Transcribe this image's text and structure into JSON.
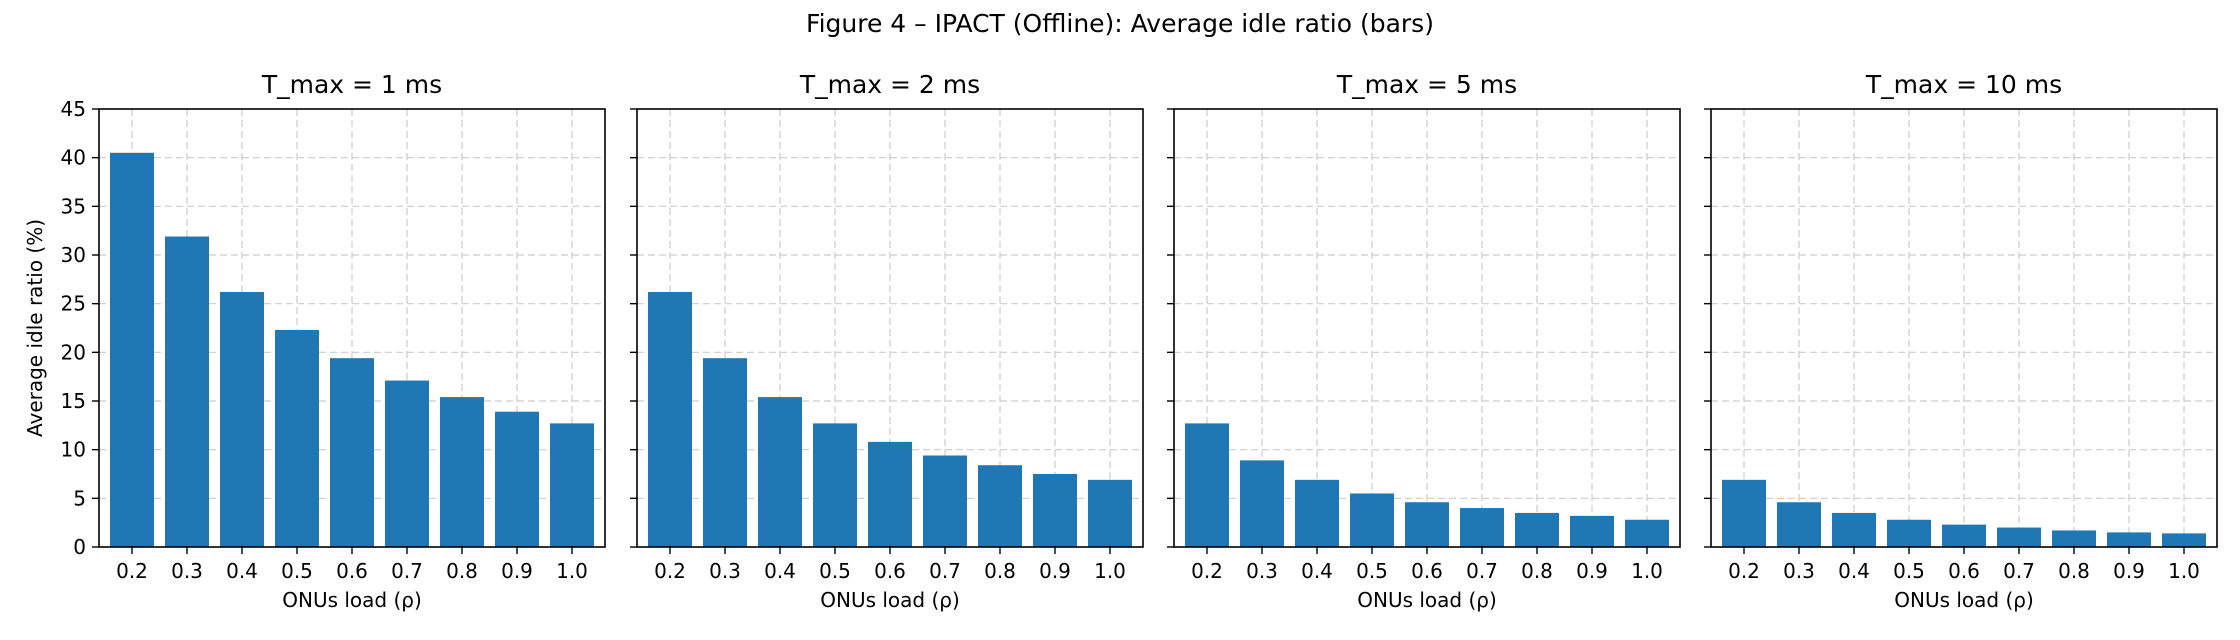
{
  "figure_title": "Figure 4 – IPACT (Offline): Average idle ratio (bars)",
  "bar_color": "#1f77b4",
  "grid_color": "#cccccc",
  "chart_data": [
    {
      "type": "bar",
      "title": "T_max = 1 ms",
      "xlabel": "ONUs load (ρ)",
      "ylabel": "Average idle ratio (%)",
      "categories": [
        "0.2",
        "0.3",
        "0.4",
        "0.5",
        "0.6",
        "0.7",
        "0.8",
        "0.9",
        "1.0"
      ],
      "values": [
        40.5,
        31.9,
        26.2,
        22.3,
        19.4,
        17.1,
        15.4,
        13.9,
        12.7
      ],
      "ylim": [
        0,
        45
      ],
      "yticks": [
        0,
        5,
        10,
        15,
        20,
        25,
        30,
        35,
        40,
        45
      ],
      "grid": true
    },
    {
      "type": "bar",
      "title": "T_max = 2 ms",
      "xlabel": "ONUs load (ρ)",
      "ylabel": "",
      "categories": [
        "0.2",
        "0.3",
        "0.4",
        "0.5",
        "0.6",
        "0.7",
        "0.8",
        "0.9",
        "1.0"
      ],
      "values": [
        26.2,
        19.4,
        15.4,
        12.7,
        10.8,
        9.4,
        8.4,
        7.5,
        6.9
      ],
      "ylim": [
        0,
        45
      ],
      "yticks": [
        0,
        5,
        10,
        15,
        20,
        25,
        30,
        35,
        40,
        45
      ],
      "grid": true
    },
    {
      "type": "bar",
      "title": "T_max = 5 ms",
      "xlabel": "ONUs load (ρ)",
      "ylabel": "",
      "categories": [
        "0.2",
        "0.3",
        "0.4",
        "0.5",
        "0.6",
        "0.7",
        "0.8",
        "0.9",
        "1.0"
      ],
      "values": [
        12.7,
        8.9,
        6.9,
        5.5,
        4.6,
        4.0,
        3.5,
        3.2,
        2.8
      ],
      "ylim": [
        0,
        45
      ],
      "yticks": [
        0,
        5,
        10,
        15,
        20,
        25,
        30,
        35,
        40,
        45
      ],
      "grid": true
    },
    {
      "type": "bar",
      "title": "T_max = 10 ms",
      "xlabel": "ONUs load (ρ)",
      "ylabel": "",
      "categories": [
        "0.2",
        "0.3",
        "0.4",
        "0.5",
        "0.6",
        "0.7",
        "0.8",
        "0.9",
        "1.0"
      ],
      "values": [
        6.9,
        4.6,
        3.5,
        2.8,
        2.3,
        2.0,
        1.7,
        1.5,
        1.4
      ],
      "ylim": [
        0,
        45
      ],
      "yticks": [
        0,
        5,
        10,
        15,
        20,
        25,
        30,
        35,
        40,
        45
      ],
      "grid": true
    }
  ]
}
